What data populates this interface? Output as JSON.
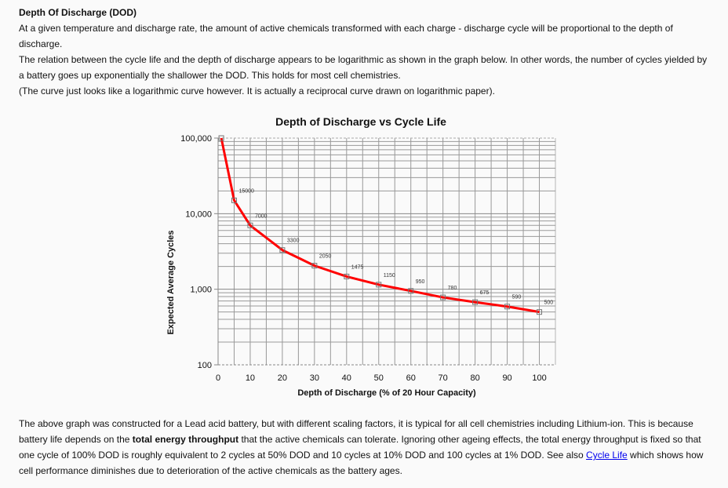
{
  "section": {
    "heading": "Depth Of Discharge (DOD)",
    "paragraph_1": "At a given temperature and discharge rate, the amount of active chemicals transformed with each charge - discharge cycle will be proportional to the depth of discharge.",
    "paragraph_2": "The relation between the cycle life and the depth of discharge appears to be logarithmic as shown in the graph below. In other words, the number of cycles yielded by a battery goes up exponentially the shallower the DOD. This holds for most cell chemistries.",
    "paragraph_3": "(The curve just looks like a logarithmic curve however. It is actually a reciprocal curve drawn on logarithmic paper)."
  },
  "footer_text": {
    "part_1": "The above graph was constructed for a Lead acid battery, but with different scaling factors, it is typical for all cell chemistries including Lithium-ion. This is because battery life depends on the ",
    "bold": "total energy throughput",
    "part_2": " that the active chemicals can tolerate. Ignoring other ageing effects, the total energy throughput is fixed so that one cycle of 100% DOD is roughly equivalent to 2 cycles at 50% DOD and 10 cycles at 10% DOD and 100 cycles at 1% DOD. See also ",
    "link": "Cycle Life",
    "part_3": " which shows how cell performance diminishes due to deterioration of the active chemicals as the battery ages."
  },
  "chart_data": {
    "type": "line",
    "title": "Depth of Discharge vs Cycle Life",
    "xlabel": "Depth of Discharge (% of 20 Hour Capacity)",
    "ylabel": "Expected Average Cycles",
    "x": [
      1,
      5,
      10,
      20,
      30,
      40,
      50,
      60,
      70,
      80,
      90,
      100
    ],
    "values": [
      100000,
      15000,
      7000,
      3300,
      2050,
      1475,
      1150,
      950,
      780,
      675,
      590,
      500
    ],
    "data_labels": [
      "",
      "15000",
      "7000",
      "3300",
      "2050",
      "1475",
      "1150",
      "950",
      "780",
      "675",
      "590",
      "500"
    ],
    "xlim": [
      0,
      105
    ],
    "ylim": [
      100,
      100000
    ],
    "yscale": "log",
    "x_ticks": [
      "0",
      "10",
      "20",
      "30",
      "40",
      "50",
      "60",
      "70",
      "80",
      "90",
      "100"
    ],
    "y_ticks": [
      "100",
      "1,000",
      "10,000",
      "100,000"
    ],
    "grid": true,
    "legend": "none",
    "line_color": "#ff0000"
  }
}
